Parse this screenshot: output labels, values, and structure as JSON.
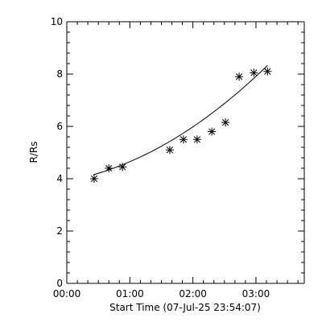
{
  "chart_data": {
    "type": "scatter",
    "xlabel": "Start Time (07-Jul-25 23:54:07)",
    "ylabel": "R/Rs",
    "xlim": [
      0,
      226
    ],
    "ylim": [
      0,
      10
    ],
    "x_ticks": [
      {
        "value": 0,
        "label": "00:00"
      },
      {
        "value": 60,
        "label": "01:00"
      },
      {
        "value": 120,
        "label": "02:00"
      },
      {
        "value": 180,
        "label": "03:00"
      }
    ],
    "y_ticks": [
      0,
      2,
      4,
      6,
      8,
      10
    ],
    "marker": "asterisk",
    "series": [
      {
        "x": [
          26,
          40,
          53,
          98,
          111,
          124,
          138,
          151,
          164,
          178,
          191
        ],
        "y": [
          4.0,
          4.4,
          4.45,
          5.1,
          5.5,
          5.5,
          5.8,
          6.15,
          7.9,
          8.05,
          8.1
        ]
      }
    ],
    "fit": {
      "type": "quadratic",
      "x": [
        25,
        191
      ],
      "y": [
        4.15,
        8.33
      ]
    }
  }
}
